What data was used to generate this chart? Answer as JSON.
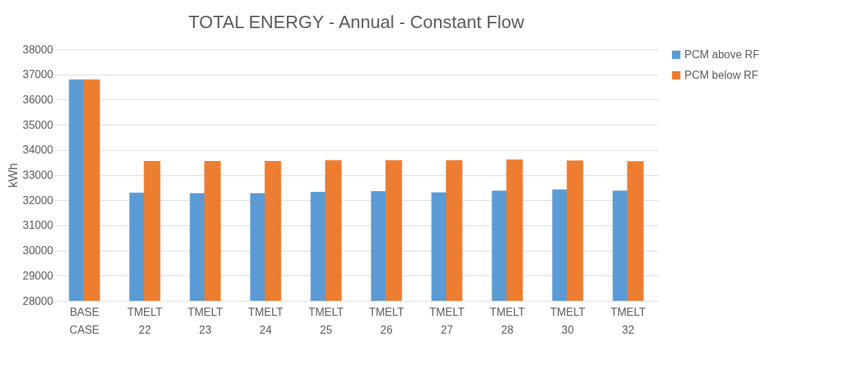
{
  "chart_data": {
    "type": "bar",
    "title": "TOTAL ENERGY - Annual - Constant Flow",
    "ylabel": "kWh",
    "categories": [
      "BASE CASE",
      "TMELT 22",
      "TMELT 23",
      "TMELT 24",
      "TMELT 25",
      "TMELT 26",
      "TMELT 27",
      "TMELT 28",
      "TMELT 30",
      "TMELT 32"
    ],
    "series": [
      {
        "name": "PCM above RF",
        "color": "#5b9bd5",
        "values": [
          36800,
          32300,
          32280,
          32280,
          32330,
          32360,
          32310,
          32380,
          32430,
          32380
        ]
      },
      {
        "name": "PCM below RF",
        "color": "#ed7d31",
        "values": [
          36800,
          33560,
          33560,
          33560,
          33590,
          33590,
          33590,
          33620,
          33580,
          33550
        ]
      }
    ],
    "ylim": [
      28000,
      38000
    ],
    "yticks": [
      28000,
      29000,
      30000,
      31000,
      32000,
      33000,
      34000,
      35000,
      36000,
      37000,
      38000
    ],
    "grid": "y",
    "legend": "right"
  }
}
